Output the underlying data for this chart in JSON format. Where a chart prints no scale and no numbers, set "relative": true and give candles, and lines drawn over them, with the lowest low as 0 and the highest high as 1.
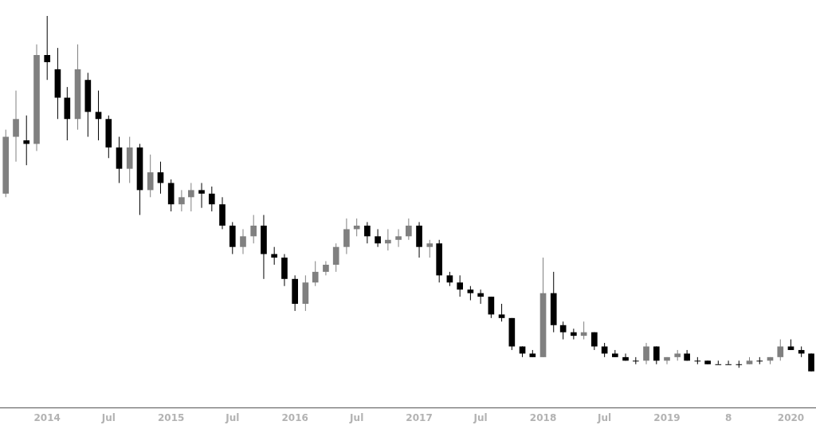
{
  "chart_data": {
    "type": "candlestick",
    "relative": true,
    "grid": false,
    "legend": false,
    "x": [
      "2013-09",
      "2013-10",
      "2013-11",
      "2013-12",
      "2014-01",
      "2014-02",
      "2014-03",
      "2014-04",
      "2014-05",
      "2014-06",
      "2014-07",
      "2014-08",
      "2014-09",
      "2014-10",
      "2014-11",
      "2014-12",
      "2015-01",
      "2015-02",
      "2015-03",
      "2015-04",
      "2015-05",
      "2015-06",
      "2015-07",
      "2015-08",
      "2015-09",
      "2015-10",
      "2015-11",
      "2015-12",
      "2016-01",
      "2016-02",
      "2016-03",
      "2016-04",
      "2016-05",
      "2016-06",
      "2016-07",
      "2016-08",
      "2016-09",
      "2016-10",
      "2016-11",
      "2016-12",
      "2017-01",
      "2017-02",
      "2017-03",
      "2017-04",
      "2017-05",
      "2017-06",
      "2017-07",
      "2017-08",
      "2017-09",
      "2017-10",
      "2017-11",
      "2017-12",
      "2018-01",
      "2018-02",
      "2018-03",
      "2018-04",
      "2018-05",
      "2018-06",
      "2018-07",
      "2018-08",
      "2018-09",
      "2018-10",
      "2018-11",
      "2018-12",
      "2019-01",
      "2019-02",
      "2019-03",
      "2019-04",
      "2019-05",
      "2019-06",
      "2019-07",
      "2019-08",
      "2019-09",
      "2019-10",
      "2019-11",
      "2019-12",
      "2020-01",
      "2020-02",
      "2020-03"
    ],
    "ohlc": [
      [
        0.5,
        0.68,
        0.49,
        0.66
      ],
      [
        0.66,
        0.79,
        0.59,
        0.71
      ],
      [
        0.65,
        0.72,
        0.58,
        0.64
      ],
      [
        0.64,
        0.92,
        0.62,
        0.89
      ],
      [
        0.89,
        1.0,
        0.82,
        0.87
      ],
      [
        0.85,
        0.91,
        0.71,
        0.77
      ],
      [
        0.77,
        0.8,
        0.65,
        0.71
      ],
      [
        0.71,
        0.92,
        0.68,
        0.85
      ],
      [
        0.82,
        0.84,
        0.66,
        0.73
      ],
      [
        0.73,
        0.79,
        0.65,
        0.71
      ],
      [
        0.71,
        0.72,
        0.6,
        0.63
      ],
      [
        0.63,
        0.66,
        0.53,
        0.57
      ],
      [
        0.57,
        0.66,
        0.53,
        0.63
      ],
      [
        0.63,
        0.64,
        0.44,
        0.51
      ],
      [
        0.51,
        0.61,
        0.49,
        0.56
      ],
      [
        0.56,
        0.59,
        0.5,
        0.53
      ],
      [
        0.53,
        0.54,
        0.45,
        0.47
      ],
      [
        0.47,
        0.51,
        0.45,
        0.49
      ],
      [
        0.49,
        0.53,
        0.45,
        0.51
      ],
      [
        0.51,
        0.53,
        0.46,
        0.5
      ],
      [
        0.5,
        0.52,
        0.45,
        0.47
      ],
      [
        0.47,
        0.49,
        0.4,
        0.41
      ],
      [
        0.41,
        0.42,
        0.33,
        0.35
      ],
      [
        0.35,
        0.4,
        0.33,
        0.38
      ],
      [
        0.38,
        0.44,
        0.36,
        0.41
      ],
      [
        0.41,
        0.44,
        0.26,
        0.33
      ],
      [
        0.33,
        0.35,
        0.3,
        0.32
      ],
      [
        0.32,
        0.33,
        0.24,
        0.26
      ],
      [
        0.26,
        0.27,
        0.17,
        0.19
      ],
      [
        0.19,
        0.27,
        0.17,
        0.25
      ],
      [
        0.25,
        0.31,
        0.24,
        0.28
      ],
      [
        0.28,
        0.31,
        0.27,
        0.3
      ],
      [
        0.3,
        0.36,
        0.28,
        0.35
      ],
      [
        0.35,
        0.43,
        0.33,
        0.4
      ],
      [
        0.4,
        0.43,
        0.38,
        0.41
      ],
      [
        0.41,
        0.42,
        0.36,
        0.38
      ],
      [
        0.38,
        0.4,
        0.35,
        0.36
      ],
      [
        0.36,
        0.4,
        0.34,
        0.37
      ],
      [
        0.37,
        0.4,
        0.35,
        0.38
      ],
      [
        0.38,
        0.43,
        0.37,
        0.41
      ],
      [
        0.41,
        0.42,
        0.32,
        0.35
      ],
      [
        0.35,
        0.37,
        0.32,
        0.36
      ],
      [
        0.36,
        0.37,
        0.25,
        0.27
      ],
      [
        0.27,
        0.28,
        0.24,
        0.25
      ],
      [
        0.25,
        0.27,
        0.21,
        0.23
      ],
      [
        0.23,
        0.24,
        0.2,
        0.22
      ],
      [
        0.22,
        0.23,
        0.19,
        0.21
      ],
      [
        0.21,
        0.21,
        0.15,
        0.16
      ],
      [
        0.16,
        0.19,
        0.14,
        0.15
      ],
      [
        0.15,
        0.15,
        0.06,
        0.07
      ],
      [
        0.07,
        0.07,
        0.04,
        0.05
      ],
      [
        0.05,
        0.06,
        0.04,
        0.04
      ],
      [
        0.04,
        0.32,
        0.04,
        0.22
      ],
      [
        0.22,
        0.28,
        0.11,
        0.13
      ],
      [
        0.13,
        0.14,
        0.09,
        0.11
      ],
      [
        0.11,
        0.12,
        0.09,
        0.1
      ],
      [
        0.1,
        0.14,
        0.09,
        0.11
      ],
      [
        0.11,
        0.11,
        0.06,
        0.07
      ],
      [
        0.07,
        0.08,
        0.04,
        0.05
      ],
      [
        0.05,
        0.06,
        0.04,
        0.04
      ],
      [
        0.04,
        0.05,
        0.03,
        0.03
      ],
      [
        0.03,
        0.04,
        0.02,
        0.03
      ],
      [
        0.03,
        0.08,
        0.02,
        0.07
      ],
      [
        0.07,
        0.07,
        0.02,
        0.03
      ],
      [
        0.03,
        0.04,
        0.02,
        0.04
      ],
      [
        0.04,
        0.06,
        0.03,
        0.05
      ],
      [
        0.05,
        0.06,
        0.03,
        0.03
      ],
      [
        0.03,
        0.04,
        0.02,
        0.03
      ],
      [
        0.03,
        0.03,
        0.02,
        0.02
      ],
      [
        0.02,
        0.03,
        0.02,
        0.02
      ],
      [
        0.02,
        0.03,
        0.02,
        0.02
      ],
      [
        0.02,
        0.03,
        0.01,
        0.02
      ],
      [
        0.02,
        0.04,
        0.02,
        0.03
      ],
      [
        0.03,
        0.04,
        0.02,
        0.03
      ],
      [
        0.03,
        0.04,
        0.02,
        0.04
      ],
      [
        0.04,
        0.09,
        0.03,
        0.07
      ],
      [
        0.07,
        0.09,
        0.06,
        0.06
      ],
      [
        0.06,
        0.07,
        0.04,
        0.05
      ],
      [
        0.05,
        0.05,
        0.0,
        0.0
      ]
    ],
    "colors": [
      "#808080",
      "#808080",
      "#000000",
      "#808080",
      "#000000",
      "#000000",
      "#000000",
      "#808080",
      "#000000",
      "#000000",
      "#000000",
      "#000000",
      "#808080",
      "#000000",
      "#808080",
      "#000000",
      "#000000",
      "#808080",
      "#808080",
      "#000000",
      "#000000",
      "#000000",
      "#000000",
      "#808080",
      "#808080",
      "#000000",
      "#000000",
      "#000000",
      "#000000",
      "#808080",
      "#808080",
      "#808080",
      "#808080",
      "#808080",
      "#808080",
      "#000000",
      "#000000",
      "#808080",
      "#808080",
      "#808080",
      "#000000",
      "#808080",
      "#000000",
      "#000000",
      "#000000",
      "#000000",
      "#000000",
      "#000000",
      "#000000",
      "#000000",
      "#000000",
      "#000000",
      "#808080",
      "#000000",
      "#000000",
      "#000000",
      "#808080",
      "#000000",
      "#000000",
      "#000000",
      "#000000",
      "#000000",
      "#808080",
      "#000000",
      "#808080",
      "#808080",
      "#000000",
      "#000000",
      "#000000",
      "#000000",
      "#000000",
      "#000000",
      "#808080",
      "#000000",
      "#808080",
      "#808080",
      "#000000",
      "#000000",
      "#000000"
    ],
    "xlim": [
      "2013-08-15",
      "2020-03-15"
    ],
    "xticks": [
      {
        "value": "2014-01",
        "label": "2014"
      },
      {
        "value": "2014-07",
        "label": "Jul"
      },
      {
        "value": "2015-01",
        "label": "2015"
      },
      {
        "value": "2015-07",
        "label": "Jul"
      },
      {
        "value": "2016-01",
        "label": "2016"
      },
      {
        "value": "2016-07",
        "label": "Jul"
      },
      {
        "value": "2017-01",
        "label": "2017"
      },
      {
        "value": "2017-07",
        "label": "Jul"
      },
      {
        "value": "2018-01",
        "label": "2018"
      },
      {
        "value": "2018-07",
        "label": "Jul"
      },
      {
        "value": "2019-01",
        "label": "2019"
      },
      {
        "value": "2019-07",
        "label": "8"
      },
      {
        "value": "2020-01",
        "label": "2020"
      }
    ]
  }
}
